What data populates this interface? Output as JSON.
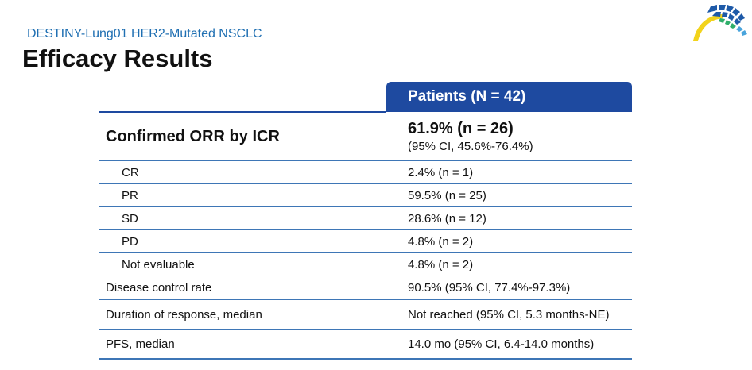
{
  "header": {
    "subtitle": "DESTINY-Lung01 HER2-Mutated NSCLC",
    "title": "Efficacy Results"
  },
  "logo": {
    "icon": "congress-arc-logo-icon",
    "colors": [
      "#f2d31b",
      "#1e5aa8",
      "#2fae6a",
      "#49a4dc"
    ]
  },
  "table": {
    "column_header": "Patients (N = 42)",
    "orr": {
      "label": "Confirmed ORR by ICR",
      "value": "61.9% (n = 26)",
      "ci": "(95% CI, 45.6%-76.4%)"
    },
    "rows": [
      {
        "label": "CR",
        "value": "2.4% (n = 1)"
      },
      {
        "label": "PR",
        "value": "59.5% (n = 25)"
      },
      {
        "label": "SD",
        "value": "28.6% (n = 12)"
      },
      {
        "label": "PD",
        "value": "4.8% (n = 2)"
      },
      {
        "label": "Not evaluable",
        "value": "4.8% (n = 2)"
      },
      {
        "label": "Disease control rate",
        "value": "90.5% (95% CI, 77.4%-97.3%)"
      },
      {
        "label": "Duration of response, median",
        "value": "Not reached (95% CI, 5.3 months-NE)"
      },
      {
        "label": "PFS, median",
        "value": "14.0 mo (95% CI, 6.4-14.0 months)"
      }
    ]
  }
}
